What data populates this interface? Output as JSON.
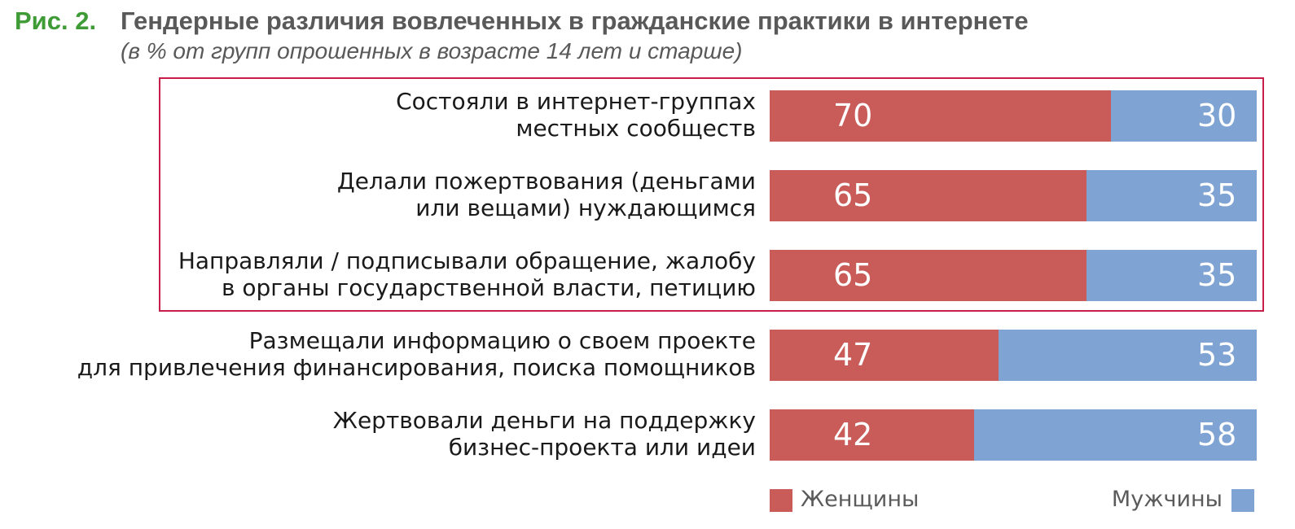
{
  "figure": {
    "number": "Рис. 2.",
    "title": "Гендерные различия вовлеченных в гражданские практики в интернете",
    "subtitle": "(в % от групп опрошенных в возрасте 14 лет и старше)"
  },
  "chart_data": {
    "type": "bar",
    "orientation": "horizontal",
    "stacked": true,
    "percent_stacked": true,
    "title": "Гендерные различия вовлеченных в гражданские практики в интернете",
    "subtitle": "(в % от групп опрошенных в возрасте 14 лет и старше)",
    "categories": [
      [
        "Состояли в интернет-группах",
        "местных сообществ"
      ],
      [
        "Делали пожертвования (деньгами",
        "или вещами) нуждающимся"
      ],
      [
        "Направляли / подписывали обращение, жалобу",
        "в органы государственной власти, петицию"
      ],
      [
        "Размещали информацию о своем проекте",
        "для привлечения финансирования, поиска помощников"
      ],
      [
        "Жертвовали деньги на поддержку",
        "бизнес-проекта или идеи"
      ]
    ],
    "series": [
      {
        "name": "Женщины",
        "color": "#c95b59",
        "values": [
          70,
          65,
          65,
          47,
          42
        ]
      },
      {
        "name": "Мужчины",
        "color": "#7fa3d3",
        "values": [
          30,
          35,
          35,
          53,
          58
        ]
      }
    ],
    "highlighted_rows": [
      0,
      1,
      2
    ],
    "highlight_color": "#c81e4a",
    "legend_position": "bottom",
    "grid": false
  }
}
